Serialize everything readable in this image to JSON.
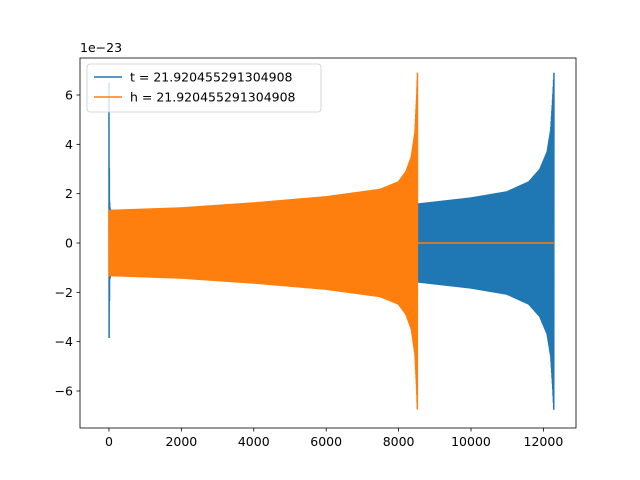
{
  "chart_data": {
    "type": "line",
    "title": "",
    "xlabel": "",
    "ylabel": "",
    "offset_text": "1e−23",
    "xlim": [
      -800,
      12900
    ],
    "ylim": [
      -7.5,
      7.5
    ],
    "xticks": [
      0,
      2000,
      4000,
      6000,
      8000,
      10000,
      12000
    ],
    "xtick_labels": [
      "0",
      "2000",
      "4000",
      "6000",
      "8000",
      "10000",
      "12000"
    ],
    "yticks": [
      -6,
      -4,
      -2,
      0,
      2,
      4,
      6
    ],
    "ytick_labels": [
      "−6",
      "−4",
      "−2",
      "0",
      "2",
      "4",
      "6"
    ],
    "grid": false,
    "legend_position": "top-left",
    "series": [
      {
        "name": "t = 21.920455291304908",
        "color": "#1f77b4",
        "x_start": 0,
        "x_end": 12290,
        "envelope": {
          "x": [
            0,
            5,
            20,
            50,
            200,
            2000,
            4000,
            6000,
            8000,
            8500,
            10000,
            11000,
            11600,
            11900,
            12100,
            12200,
            12260,
            12290
          ],
          "amp": [
            6.5,
            3.7,
            1.5,
            1.3,
            1.3,
            1.32,
            1.38,
            1.45,
            1.55,
            1.6,
            1.85,
            2.1,
            2.5,
            3.0,
            3.7,
            4.6,
            6.0,
            6.9
          ]
        }
      },
      {
        "name": "h = 21.920455291304908",
        "color": "#ff7f0e",
        "x_start": 0,
        "x_end": 12290,
        "active_end": 8520,
        "envelope": {
          "x": [
            0,
            10,
            50,
            2000,
            4000,
            6000,
            7500,
            8000,
            8200,
            8350,
            8450,
            8500,
            8520
          ],
          "amp": [
            1.3,
            1.35,
            1.35,
            1.45,
            1.65,
            1.9,
            2.2,
            2.5,
            2.9,
            3.5,
            4.5,
            6.0,
            6.9
          ]
        }
      }
    ]
  }
}
